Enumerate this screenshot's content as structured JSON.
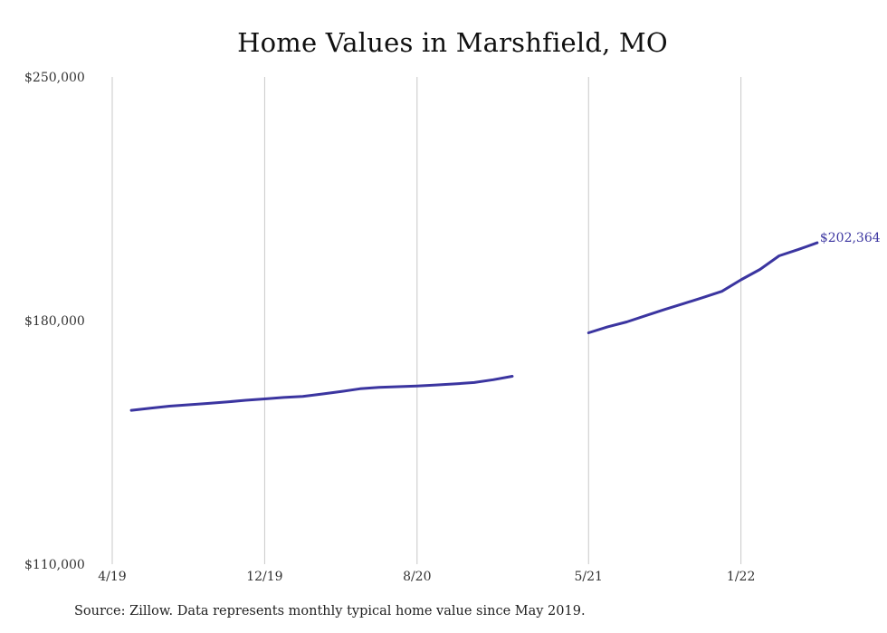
{
  "chart_data": {
    "type": "line",
    "title": "Home Values in Marshfield, MO",
    "xlabel": "",
    "ylabel": "",
    "ylim": [
      110000,
      250000
    ],
    "y_ticks": [
      "$250,000",
      "$180,000",
      "$110,000"
    ],
    "x_ticks": [
      "4/19",
      "12/19",
      "8/20",
      "5/21",
      "1/22"
    ],
    "grid": "vertical",
    "series": [
      {
        "color": "#3b35a0",
        "segments": [
          {
            "x": [
              "2019-05",
              "2019-06",
              "2019-07",
              "2019-08",
              "2019-09",
              "2019-10",
              "2019-11",
              "2019-12",
              "2020-01",
              "2020-02",
              "2020-03",
              "2020-04",
              "2020-05",
              "2020-06",
              "2020-07",
              "2020-08",
              "2020-09",
              "2020-10",
              "2020-11",
              "2020-12",
              "2021-01"
            ],
            "y": [
              154200,
              154800,
              155400,
              155800,
              156200,
              156600,
              157100,
              157500,
              157900,
              158200,
              158900,
              159600,
              160400,
              160800,
              161000,
              161200,
              161500,
              161800,
              162200,
              163000,
              164000
            ]
          },
          {
            "x": [
              "2021-05",
              "2021-06",
              "2021-07",
              "2021-08",
              "2021-09",
              "2021-10",
              "2021-11",
              "2021-12",
              "2022-01",
              "2022-02",
              "2022-03",
              "2022-04",
              "2022-05"
            ],
            "y": [
              176500,
              178200,
              179600,
              181400,
              183200,
              184900,
              186600,
              188400,
              191700,
              194700,
              198600,
              200400,
              202364
            ]
          }
        ]
      }
    ],
    "end_label": "$202,364"
  },
  "source_note": "Source: Zillow. Data represents monthly typical home value since May 2019."
}
